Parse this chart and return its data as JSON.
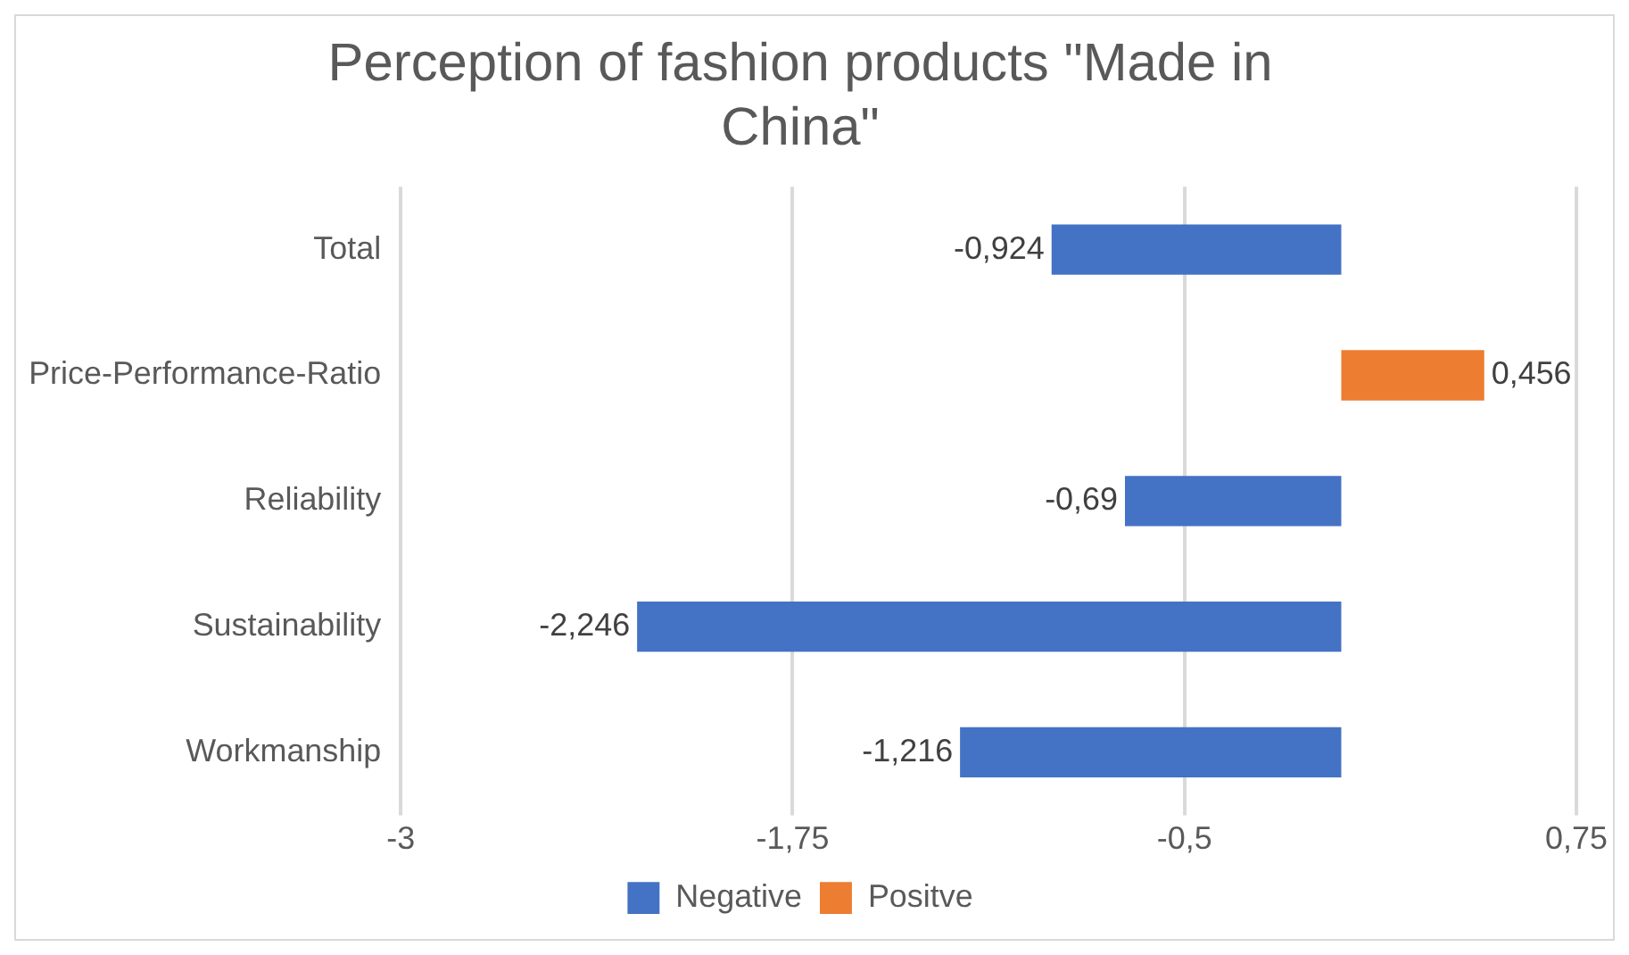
{
  "chart_data": {
    "type": "bar",
    "orientation": "horizontal",
    "title": "Perception of fashion products \"Made in China\"",
    "categories": [
      "Total",
      "Price-Performance-Ratio",
      "Reliability",
      "Sustainability",
      "Workmanship"
    ],
    "series": [
      {
        "name": "Negative",
        "color": "#4472c4",
        "values": [
          -0.924,
          null,
          -0.69,
          -2.246,
          -1.216
        ],
        "value_labels": [
          "-0,924",
          null,
          "-0,69",
          "-2,246",
          "-1,216"
        ]
      },
      {
        "name": "Positve",
        "color": "#ed7d31",
        "values": [
          null,
          0.456,
          null,
          null,
          null
        ],
        "value_labels": [
          null,
          "0,456",
          null,
          null,
          null
        ]
      }
    ],
    "xlim": [
      -3,
      0.75
    ],
    "xticks": [
      {
        "value": -3,
        "label": "-3"
      },
      {
        "value": -1.75,
        "label": "-1,75"
      },
      {
        "value": -0.5,
        "label": "-0,5"
      },
      {
        "value": 0.75,
        "label": "0,75"
      }
    ],
    "grid": "x",
    "legend": "bottom"
  }
}
